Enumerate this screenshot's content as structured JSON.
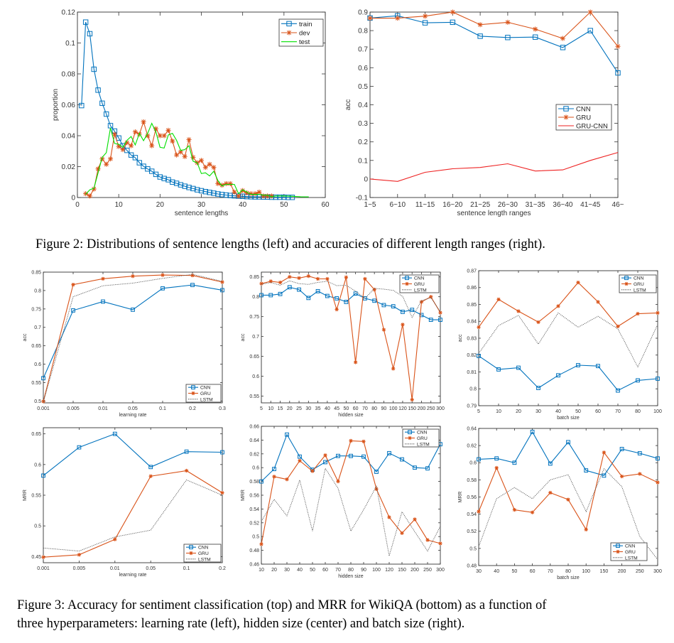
{
  "figure2": {
    "caption": "Figure 2: Distributions of sentence lengths (left) and accuracies of different length ranges (right)."
  },
  "figure3": {
    "caption_line1": "Figure 3:  Accuracy for sentiment classification (top) and MRR for WikiQA (bottom) as a function of",
    "caption_line2": "three hyperparameters: learning rate (left), hidden size (center) and batch size (right)."
  },
  "colors": {
    "cnn": "#0072BD",
    "gru": "#D95319",
    "lstm": "#555555",
    "train": "#0072BD",
    "dev": "#D95319",
    "test": "#00E000",
    "grucnn": "#EE2222"
  },
  "chart_data": [
    {
      "id": "fig2-left",
      "type": "line",
      "title": "",
      "xlabel": "sentence lengths",
      "ylabel": "proportion",
      "xlim": [
        0,
        60
      ],
      "ylim": [
        0,
        0.12
      ],
      "xticks": [
        0,
        10,
        20,
        30,
        40,
        50,
        60
      ],
      "yticks": [
        0,
        0.02,
        0.04,
        0.06,
        0.08,
        0.1,
        0.12
      ],
      "legend_position": "top-right",
      "series": [
        {
          "name": "train",
          "marker": "square",
          "color": "train",
          "x": [
            1,
            2,
            3,
            4,
            5,
            6,
            7,
            8,
            9,
            10,
            11,
            12,
            13,
            14,
            15,
            16,
            17,
            18,
            19,
            20,
            21,
            22,
            23,
            24,
            25,
            26,
            27,
            28,
            29,
            30,
            31,
            32,
            33,
            34,
            35,
            36,
            37,
            38,
            39,
            40,
            41,
            42,
            43,
            44,
            45,
            46,
            47,
            48,
            49,
            50,
            51,
            52
          ],
          "y": [
            0.0595,
            0.1135,
            0.106,
            0.083,
            0.0695,
            0.061,
            0.054,
            0.0465,
            0.043,
            0.0385,
            0.0335,
            0.0305,
            0.0275,
            0.0258,
            0.0225,
            0.0202,
            0.0185,
            0.017,
            0.015,
            0.0133,
            0.0123,
            0.0115,
            0.01,
            0.0092,
            0.0082,
            0.0073,
            0.0065,
            0.0058,
            0.005,
            0.0044,
            0.0038,
            0.0033,
            0.0028,
            0.0023,
            0.0019,
            0.0016,
            0.0013,
            0.0011,
            0.0009,
            0.0008,
            0.0006,
            0.0005,
            0.0004,
            0.0004,
            0.0003,
            0.0003,
            0.0002,
            0.0002,
            0.0002,
            0.0002,
            0.0001,
            0.0001
          ]
        },
        {
          "name": "dev",
          "marker": "star",
          "color": "dev",
          "x": [
            2,
            3,
            4,
            5,
            6,
            7,
            8,
            9,
            10,
            11,
            12,
            13,
            14,
            15,
            16,
            17,
            18,
            19,
            20,
            21,
            22,
            23,
            24,
            25,
            26,
            27,
            28,
            29,
            30,
            31,
            32,
            33,
            34,
            35,
            36,
            37,
            38,
            39,
            40,
            41,
            42,
            43,
            44,
            45,
            46,
            47
          ],
          "y": [
            0.0025,
            0.001,
            0.0055,
            0.0185,
            0.025,
            0.0215,
            0.025,
            0.041,
            0.033,
            0.031,
            0.0355,
            0.0335,
            0.0425,
            0.041,
            0.049,
            0.04,
            0.0335,
            0.0445,
            0.04,
            0.04,
            0.0435,
            0.0365,
            0.0275,
            0.0295,
            0.0265,
            0.0375,
            0.026,
            0.0225,
            0.024,
            0.0195,
            0.0215,
            0.0195,
            0.009,
            0.008,
            0.009,
            0.009,
            0.0035,
            0.001,
            0.0045,
            0.003,
            0.0025,
            0.0025,
            0.0035,
            0.001,
            0.001,
            0.001
          ]
        },
        {
          "name": "test",
          "marker": "none",
          "color": "test",
          "x": [
            2,
            3,
            4,
            5,
            6,
            7,
            8,
            9,
            10,
            11,
            12,
            13,
            14,
            15,
            16,
            17,
            18,
            19,
            20,
            21,
            22,
            23,
            24,
            25,
            26,
            27,
            28,
            29,
            30,
            31,
            32,
            33,
            34,
            35,
            36,
            37,
            38,
            39,
            40,
            41,
            42,
            43,
            44,
            45,
            46,
            47,
            48,
            50,
            52,
            54,
            56
          ],
          "y": [
            0.002,
            0.005,
            0.006,
            0.016,
            0.026,
            0.029,
            0.045,
            0.035,
            0.0345,
            0.0325,
            0.037,
            0.0395,
            0.034,
            0.0415,
            0.0368,
            0.0415,
            0.048,
            0.0425,
            0.0325,
            0.032,
            0.0405,
            0.0415,
            0.037,
            0.0305,
            0.031,
            0.0335,
            0.0235,
            0.0225,
            0.0155,
            0.016,
            0.014,
            0.017,
            0.011,
            0.0075,
            0.0085,
            0.0085,
            0.0085,
            0.0025,
            0.005,
            0.0035,
            0.002,
            0.002,
            0.002,
            0.0015,
            0.0015,
            0.0005,
            0.001,
            0.001,
            0.0008,
            0.0005,
            0.0004
          ]
        }
      ]
    },
    {
      "id": "fig2-right",
      "type": "line",
      "xlabel": "sentence length ranges",
      "ylabel": "acc",
      "categories": [
        "1~5",
        "6~10",
        "11~15",
        "16~20",
        "21~25",
        "26~30",
        "31~35",
        "36~40",
        "41~45",
        "46~"
      ],
      "ylim": [
        -0.1,
        0.9
      ],
      "yticks": [
        -0.1,
        0,
        0.1,
        0.2,
        0.3,
        0.4,
        0.5,
        0.6,
        0.7,
        0.8,
        0.9
      ],
      "legend_position": "center-right",
      "series": [
        {
          "name": "CNN",
          "marker": "square",
          "color": "cnn",
          "values": [
            0.868,
            0.88,
            0.842,
            0.845,
            0.77,
            0.763,
            0.765,
            0.709,
            0.8,
            0.572
          ]
        },
        {
          "name": "GRU",
          "marker": "star",
          "color": "gru",
          "values": [
            0.867,
            0.867,
            0.878,
            0.9,
            0.832,
            0.845,
            0.808,
            0.758,
            0.9,
            0.715
          ]
        },
        {
          "name": "GRU-CNN",
          "marker": "none",
          "color": "grucnn",
          "values": [
            0.0,
            -0.013,
            0.036,
            0.055,
            0.062,
            0.082,
            0.043,
            0.049,
            0.1,
            0.143
          ]
        }
      ]
    },
    {
      "id": "fig3-acc-lr",
      "type": "line",
      "xlabel": "learning rate",
      "ylabel": "acc",
      "categories": [
        "0.001",
        "0.005",
        "0.01",
        "0.05",
        "0.1",
        "0.2",
        "0.3"
      ],
      "ylim": [
        0.495,
        0.85
      ],
      "yticks": [
        0.5,
        0.55,
        0.6,
        0.65,
        0.7,
        0.75,
        0.8,
        0.85
      ],
      "legend_position": "bottom-right",
      "series": [
        {
          "name": "CNN",
          "marker": "square",
          "color": "cnn",
          "values": [
            0.562,
            0.746,
            0.77,
            0.748,
            0.806,
            0.815,
            0.801
          ]
        },
        {
          "name": "GRU",
          "marker": "star",
          "color": "gru",
          "values": [
            0.499,
            0.816,
            0.832,
            0.839,
            0.842,
            0.841,
            0.823
          ]
        },
        {
          "name": "LSTM",
          "marker": "dotted",
          "color": "lstm",
          "values": [
            0.497,
            0.783,
            0.813,
            0.82,
            0.833,
            0.844,
            0.825
          ]
        }
      ]
    },
    {
      "id": "fig3-acc-hidden",
      "type": "line",
      "xlabel": "hidden size",
      "ylabel": "acc",
      "categories": [
        "5",
        "10",
        "15",
        "20",
        "25",
        "30",
        "35",
        "40",
        "45",
        "50",
        "60",
        "70",
        "80",
        "90",
        "100",
        "120",
        "150",
        "200",
        "250",
        "300"
      ],
      "ylim": [
        0.533,
        0.862
      ],
      "yticks": [
        0.55,
        0.6,
        0.65,
        0.7,
        0.75,
        0.8,
        0.85
      ],
      "legend_position": "top-right",
      "series": [
        {
          "name": "CNN",
          "marker": "square",
          "color": "cnn",
          "values": [
            0.804,
            0.804,
            0.807,
            0.824,
            0.818,
            0.797,
            0.814,
            0.802,
            0.796,
            0.787,
            0.808,
            0.796,
            0.79,
            0.779,
            0.776,
            0.762,
            0.767,
            0.754,
            0.742,
            0.742
          ]
        },
        {
          "name": "GRU",
          "marker": "star",
          "color": "gru",
          "values": [
            0.833,
            0.839,
            0.836,
            0.85,
            0.847,
            0.852,
            0.845,
            0.845,
            0.768,
            0.849,
            0.635,
            0.845,
            0.818,
            0.717,
            0.619,
            0.73,
            0.541,
            0.787,
            0.8,
            0.76
          ]
        },
        {
          "name": "LSTM",
          "marker": "dotted",
          "color": "lstm",
          "values": [
            0.831,
            0.836,
            0.829,
            0.84,
            0.833,
            0.831,
            0.836,
            0.839,
            0.828,
            0.829,
            0.814,
            0.796,
            0.821,
            0.819,
            0.816,
            0.801,
            0.748,
            0.79,
            0.798,
            0.762
          ]
        }
      ]
    },
    {
      "id": "fig3-acc-batch",
      "type": "line",
      "xlabel": "batch size",
      "ylabel": "acc",
      "categories": [
        "5",
        "10",
        "20",
        "30",
        "40",
        "50",
        "60",
        "70",
        "80",
        "100"
      ],
      "ylim": [
        0.79,
        0.87
      ],
      "yticks": [
        0.79,
        0.8,
        0.81,
        0.82,
        0.83,
        0.84,
        0.85,
        0.86,
        0.87
      ],
      "legend_position": "top-right",
      "series": [
        {
          "name": "CNN",
          "marker": "square",
          "color": "cnn",
          "values": [
            0.8195,
            0.8115,
            0.8125,
            0.8005,
            0.808,
            0.814,
            0.8135,
            0.799,
            0.805,
            0.806
          ]
        },
        {
          "name": "GRU",
          "marker": "star",
          "color": "gru",
          "values": [
            0.8365,
            0.853,
            0.846,
            0.8395,
            0.849,
            0.863,
            0.8515,
            0.837,
            0.8445,
            0.845
          ]
        },
        {
          "name": "LSTM",
          "marker": "dotted",
          "color": "lstm",
          "values": [
            0.821,
            0.8375,
            0.8435,
            0.8265,
            0.845,
            0.8365,
            0.843,
            0.8355,
            0.813,
            0.838
          ]
        }
      ]
    },
    {
      "id": "fig3-mrr-lr",
      "type": "line",
      "xlabel": "learning rate",
      "ylabel": "MRR",
      "categories": [
        "0.001",
        "0.005",
        "0.01",
        "0.05",
        "0.1",
        "0.2"
      ],
      "ylim": [
        0.44,
        0.66
      ],
      "yticks": [
        0.45,
        0.5,
        0.55,
        0.6,
        0.65
      ],
      "legend_position": "bottom-right",
      "series": [
        {
          "name": "CNN",
          "marker": "square",
          "color": "cnn",
          "values": [
            0.582,
            0.628,
            0.65,
            0.596,
            0.621,
            0.62
          ]
        },
        {
          "name": "GRU",
          "marker": "star",
          "color": "gru",
          "values": [
            0.449,
            0.453,
            0.478,
            0.581,
            0.59,
            0.554
          ]
        },
        {
          "name": "LSTM",
          "marker": "dotted",
          "color": "lstm",
          "values": [
            0.464,
            0.459,
            0.482,
            0.493,
            0.575,
            0.55
          ]
        }
      ]
    },
    {
      "id": "fig3-mrr-hidden",
      "type": "line",
      "xlabel": "hidden size",
      "ylabel": "MRR",
      "categories": [
        "10",
        "20",
        "30",
        "40",
        "50",
        "60",
        "70",
        "80",
        "90",
        "100",
        "120",
        "150",
        "200",
        "250",
        "300"
      ],
      "ylim": [
        0.46,
        0.66
      ],
      "yticks": [
        0.46,
        0.48,
        0.5,
        0.52,
        0.54,
        0.56,
        0.58,
        0.6,
        0.62,
        0.64,
        0.66
      ],
      "legend_position": "top-right",
      "series": [
        {
          "name": "CNN",
          "marker": "square",
          "color": "cnn",
          "values": [
            0.58,
            0.598,
            0.648,
            0.616,
            0.597,
            0.608,
            0.617,
            0.617,
            0.616,
            0.594,
            0.621,
            0.612,
            0.6,
            0.599,
            0.634
          ]
        },
        {
          "name": "GRU",
          "marker": "star",
          "color": "gru",
          "values": [
            0.489,
            0.587,
            0.583,
            0.61,
            0.595,
            0.618,
            0.58,
            0.639,
            0.638,
            0.569,
            0.528,
            0.505,
            0.525,
            0.495,
            0.49
          ]
        },
        {
          "name": "LSTM",
          "marker": "dotted",
          "color": "lstm",
          "values": [
            0.522,
            0.554,
            0.53,
            0.582,
            0.508,
            0.599,
            0.57,
            0.508,
            0.539,
            0.573,
            0.472,
            0.536,
            0.507,
            0.479,
            0.515
          ]
        }
      ]
    },
    {
      "id": "fig3-mrr-batch",
      "type": "line",
      "xlabel": "batch size",
      "ylabel": "MRR",
      "categories": [
        "30",
        "40",
        "50",
        "60",
        "70",
        "80",
        "100",
        "150",
        "200",
        "250",
        "300"
      ],
      "ylim": [
        0.48,
        0.64
      ],
      "yticks": [
        0.48,
        0.5,
        0.52,
        0.54,
        0.56,
        0.58,
        0.6,
        0.62,
        0.64
      ],
      "legend_position": "bottom-right",
      "series": [
        {
          "name": "CNN",
          "marker": "square",
          "color": "cnn",
          "values": [
            0.604,
            0.605,
            0.6,
            0.636,
            0.599,
            0.624,
            0.591,
            0.585,
            0.616,
            0.611,
            0.605
          ]
        },
        {
          "name": "GRU",
          "marker": "star",
          "color": "gru",
          "values": [
            0.543,
            0.594,
            0.545,
            0.542,
            0.565,
            0.557,
            0.522,
            0.612,
            0.584,
            0.587,
            0.577
          ]
        },
        {
          "name": "LSTM",
          "marker": "dotted",
          "color": "lstm",
          "values": [
            0.502,
            0.558,
            0.571,
            0.558,
            0.58,
            0.586,
            0.543,
            0.593,
            0.572,
            0.514,
            0.487
          ]
        }
      ]
    }
  ]
}
